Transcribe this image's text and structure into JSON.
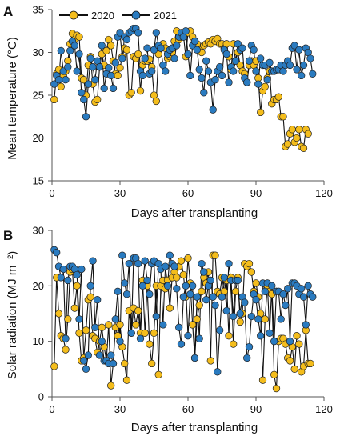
{
  "colors": {
    "2020": "#f4bd1c",
    "2021": "#2a7bc0",
    "line": "#111111"
  },
  "chart_data": [
    {
      "panel": "A",
      "type": "line",
      "xlabel": "Days after transplanting",
      "ylabel": "Mean temperature (°C)",
      "xlim": [
        0,
        120
      ],
      "ylim": [
        15,
        35
      ],
      "xticks": [
        "0",
        "30",
        "60",
        "90",
        "120"
      ],
      "yticks": [
        "15",
        "20",
        "25",
        "30",
        "35"
      ],
      "legend": "top-left",
      "series": [
        {
          "name": "2020",
          "color": "#f4bd1c",
          "x": [
            1,
            2,
            3,
            4,
            5,
            6,
            7,
            8,
            9,
            10,
            11,
            12,
            13,
            14,
            15,
            16,
            17,
            18,
            19,
            20,
            21,
            22,
            23,
            24,
            25,
            26,
            27,
            28,
            29,
            30,
            31,
            32,
            33,
            34,
            35,
            36,
            37,
            38,
            39,
            40,
            41,
            42,
            43,
            44,
            45,
            46,
            47,
            48,
            49,
            50,
            51,
            52,
            53,
            54,
            55,
            56,
            57,
            58,
            59,
            60,
            61,
            62,
            63,
            64,
            65,
            66,
            67,
            68,
            69,
            70,
            71,
            72,
            73,
            74,
            75,
            76,
            77,
            78,
            79,
            80,
            81,
            82,
            83,
            84,
            85,
            86,
            87,
            88,
            89,
            90,
            91,
            92,
            93,
            94,
            95,
            96,
            97,
            98,
            99,
            100,
            101,
            102,
            103,
            104,
            105,
            106,
            107,
            108,
            109,
            110,
            111,
            112,
            113
          ],
          "y": [
            24.5,
            27.5,
            28.0,
            26.0,
            27.2,
            27.8,
            29.0,
            31.0,
            32.2,
            31.5,
            32.0,
            31.8,
            27.0,
            26.8,
            25.0,
            28.5,
            29.5,
            26.3,
            24.2,
            24.5,
            28.3,
            29.8,
            28.5,
            30.2,
            31.5,
            30.8,
            29.0,
            27.5,
            27.3,
            28.2,
            29.5,
            30.5,
            30.3,
            25.0,
            25.3,
            29.5,
            29.3,
            29.8,
            25.5,
            28.5,
            29.0,
            29.0,
            29.2,
            28.3,
            25.0,
            24.3,
            29.8,
            30.5,
            31.0,
            30.5,
            29.3,
            29.5,
            30.0,
            31.3,
            32.5,
            31.5,
            31.8,
            32.0,
            29.5,
            32.3,
            32.5,
            31.8,
            31.3,
            31.0,
            30.3,
            30.0,
            30.8,
            31.0,
            31.2,
            31.0,
            31.5,
            31.3,
            31.6,
            31.0,
            31.0,
            30.5,
            31.0,
            29.5,
            28.0,
            31.0,
            29.0,
            30.0,
            28.5,
            27.8,
            27.5,
            26.5,
            28.5,
            29.0,
            28.5,
            29.0,
            27.0,
            23.0,
            25.5,
            26.0,
            27.0,
            27.8,
            24.0,
            24.5,
            24.5,
            24.8,
            22.5,
            22.5,
            19.0,
            19.3,
            20.5,
            21.0,
            19.5,
            20.0,
            21.0,
            19.0,
            18.8,
            21.0,
            20.5
          ]
        },
        {
          "name": "2021",
          "color": "#2a7bc0",
          "x": [
            1,
            2,
            3,
            4,
            5,
            6,
            7,
            8,
            9,
            10,
            11,
            12,
            13,
            14,
            15,
            16,
            17,
            18,
            19,
            20,
            21,
            22,
            23,
            24,
            25,
            26,
            27,
            28,
            29,
            30,
            31,
            32,
            33,
            34,
            35,
            36,
            37,
            38,
            39,
            40,
            41,
            42,
            43,
            44,
            45,
            46,
            47,
            48,
            49,
            50,
            51,
            52,
            53,
            54,
            55,
            56,
            57,
            58,
            59,
            60,
            61,
            62,
            63,
            64,
            65,
            66,
            67,
            68,
            69,
            70,
            71,
            72,
            73,
            74,
            75,
            76,
            77,
            78,
            79,
            80,
            81,
            82,
            83,
            84,
            85,
            86,
            87,
            88,
            89,
            90,
            91,
            92,
            93,
            94,
            95,
            96,
            97,
            98,
            99,
            100,
            101,
            102,
            103,
            104,
            105,
            106,
            107,
            108,
            109,
            110,
            111,
            112,
            113,
            114,
            115
          ],
          "y": [
            26.3,
            27.3,
            26.8,
            30.2,
            27.8,
            26.8,
            28.3,
            30.2,
            31.3,
            30.8,
            27.8,
            29.8,
            25.3,
            24.5,
            22.5,
            26.3,
            29.3,
            28.3,
            26.8,
            29.0,
            28.3,
            30.8,
            25.8,
            27.5,
            28.2,
            27.3,
            25.8,
            28.8,
            31.8,
            32.3,
            29.3,
            31.8,
            31.5,
            32.3,
            32.5,
            32.8,
            32.8,
            32.3,
            27.8,
            27.3,
            29.3,
            30.5,
            27.5,
            27.8,
            30.3,
            32.3,
            30.8,
            30.5,
            28.5,
            27.8,
            29.8,
            30.3,
            30.5,
            29.3,
            30.8,
            31.8,
            32.3,
            31.8,
            32.5,
            29.8,
            27.3,
            30.8,
            31.3,
            30.3,
            28.0,
            27.0,
            25.3,
            29.0,
            27.8,
            26.5,
            23.3,
            26.8,
            27.8,
            28.3,
            27.3,
            30.3,
            29.8,
            26.5,
            28.3,
            27.8,
            29.0,
            31.0,
            30.3,
            30.5,
            27.0,
            26.5,
            29.0,
            30.8,
            30.3,
            27.8,
            26.3,
            29.3,
            28.5,
            28.5,
            26.8,
            28.8,
            27.8,
            27.8,
            28.0,
            28.0,
            28.5,
            27.8,
            28.5,
            29.0,
            28.5,
            30.5,
            30.8,
            28.0,
            30.3,
            27.3,
            28.5,
            30.5,
            30.0,
            29.3,
            27.5
          ]
        }
      ]
    },
    {
      "panel": "B",
      "type": "line",
      "xlabel": "Days after transplanting",
      "ylabel": "Solar radiation (MJ m⁻²)",
      "xlim": [
        0,
        120
      ],
      "ylim": [
        0,
        30
      ],
      "xticks": [
        "0",
        "30",
        "60",
        "90",
        "120"
      ],
      "yticks": [
        "0",
        "10",
        "20",
        "30"
      ],
      "series": [
        {
          "name": "2020",
          "color": "#f4bd1c",
          "x": [
            1,
            2,
            3,
            4,
            5,
            6,
            7,
            8,
            9,
            10,
            11,
            12,
            13,
            14,
            15,
            16,
            17,
            18,
            19,
            20,
            21,
            22,
            23,
            24,
            25,
            26,
            27,
            28,
            29,
            30,
            31,
            32,
            33,
            34,
            35,
            36,
            37,
            38,
            39,
            40,
            41,
            42,
            43,
            44,
            45,
            46,
            47,
            48,
            49,
            50,
            51,
            52,
            53,
            54,
            55,
            56,
            57,
            58,
            59,
            60,
            61,
            62,
            63,
            64,
            65,
            66,
            67,
            68,
            69,
            70,
            71,
            72,
            73,
            74,
            75,
            76,
            77,
            78,
            79,
            80,
            81,
            82,
            83,
            84,
            85,
            86,
            87,
            88,
            89,
            90,
            91,
            92,
            93,
            94,
            95,
            96,
            97,
            98,
            99,
            100,
            101,
            102,
            103,
            104,
            105,
            106,
            107,
            108,
            109,
            110,
            111,
            112,
            113,
            114
          ],
          "y": [
            5.5,
            21.5,
            15.0,
            11.0,
            10.5,
            8.5,
            14.0,
            22.5,
            23.0,
            16.0,
            20.0,
            11.5,
            6.5,
            7.0,
            12.0,
            17.5,
            18.0,
            11.0,
            10.5,
            8.0,
            10.0,
            12.5,
            9.0,
            6.5,
            13.0,
            2.0,
            6.0,
            12.5,
            11.0,
            13.0,
            9.0,
            6.0,
            3.0,
            15.5,
            11.5,
            16.0,
            13.0,
            15.5,
            11.5,
            21.0,
            11.5,
            20.0,
            9.5,
            6.0,
            11.5,
            20.0,
            4.0,
            20.0,
            21.0,
            19.5,
            21.0,
            16.0,
            21.5,
            22.5,
            21.5,
            23.5,
            24.5,
            22.0,
            18.0,
            25.0,
            20.5,
            13.0,
            7.0,
            14.0,
            16.5,
            19.0,
            21.5,
            20.5,
            22.5,
            6.5,
            25.5,
            25.5,
            19.0,
            18.5,
            21.5,
            19.0,
            21.0,
            11.0,
            21.5,
            9.5,
            19.0,
            21.5,
            13.5,
            15.0,
            24.0,
            23.5,
            24.0,
            22.5,
            19.0,
            20.5,
            18.0,
            15.0,
            3.0,
            14.0,
            20.0,
            19.0,
            18.5,
            4.0,
            1.5,
            10.0,
            10.5,
            10.5,
            9.5,
            7.0,
            6.5,
            9.0,
            5.0,
            11.0,
            9.5,
            4.5,
            5.5,
            12.0,
            6.0,
            6.0
          ]
        },
        {
          "name": "2021",
          "color": "#2a7bc0",
          "x": [
            1,
            2,
            3,
            4,
            5,
            6,
            7,
            8,
            9,
            10,
            11,
            12,
            13,
            14,
            15,
            16,
            17,
            18,
            19,
            20,
            21,
            22,
            23,
            24,
            25,
            26,
            27,
            28,
            29,
            30,
            31,
            32,
            33,
            34,
            35,
            36,
            37,
            38,
            39,
            40,
            41,
            42,
            43,
            44,
            45,
            46,
            47,
            48,
            49,
            50,
            51,
            52,
            53,
            54,
            55,
            56,
            57,
            58,
            59,
            60,
            61,
            62,
            63,
            64,
            65,
            66,
            67,
            68,
            69,
            70,
            71,
            72,
            73,
            74,
            75,
            76,
            77,
            78,
            79,
            80,
            81,
            82,
            83,
            84,
            85,
            86,
            87,
            88,
            89,
            90,
            91,
            92,
            93,
            94,
            95,
            96,
            97,
            98,
            99,
            100,
            101,
            102,
            103,
            104,
            105,
            106,
            107,
            108,
            109,
            110,
            111,
            112,
            113,
            114,
            115
          ],
          "y": [
            26.5,
            26.0,
            23.5,
            21.5,
            23.0,
            10.5,
            21.0,
            23.5,
            23.5,
            23.0,
            22.0,
            14.0,
            23.0,
            6.5,
            5.0,
            7.5,
            20.0,
            24.5,
            12.5,
            17.5,
            7.5,
            10.0,
            6.5,
            6.5,
            6.0,
            7.5,
            6.0,
            14.0,
            19.0,
            10.0,
            25.5,
            20.5,
            18.5,
            24.0,
            11.5,
            25.0,
            25.0,
            24.0,
            10.5,
            20.0,
            24.5,
            21.0,
            18.5,
            24.0,
            24.5,
            14.5,
            24.0,
            23.0,
            13.0,
            23.5,
            20.0,
            25.5,
            24.0,
            23.5,
            19.5,
            12.5,
            9.5,
            18.0,
            20.0,
            11.0,
            18.5,
            20.0,
            7.0,
            18.0,
            10.5,
            24.0,
            22.5,
            17.5,
            20.0,
            21.0,
            18.0,
            16.5,
            4.5,
            12.0,
            18.0,
            21.5,
            15.5,
            24.0,
            21.0,
            14.5,
            21.0,
            21.0,
            15.0,
            18.0,
            17.0,
            7.0,
            9.0,
            14.5,
            18.5,
            17.5,
            14.0,
            11.0,
            20.5,
            19.0,
            20.5,
            11.5,
            20.0,
            10.0,
            19.0,
            19.0,
            14.0,
            18.5,
            16.5,
            19.5,
            10.0,
            20.5,
            20.5,
            20.0,
            18.5,
            19.5,
            18.0,
            13.0,
            20.0,
            18.5,
            18.0
          ]
        }
      ]
    }
  ]
}
